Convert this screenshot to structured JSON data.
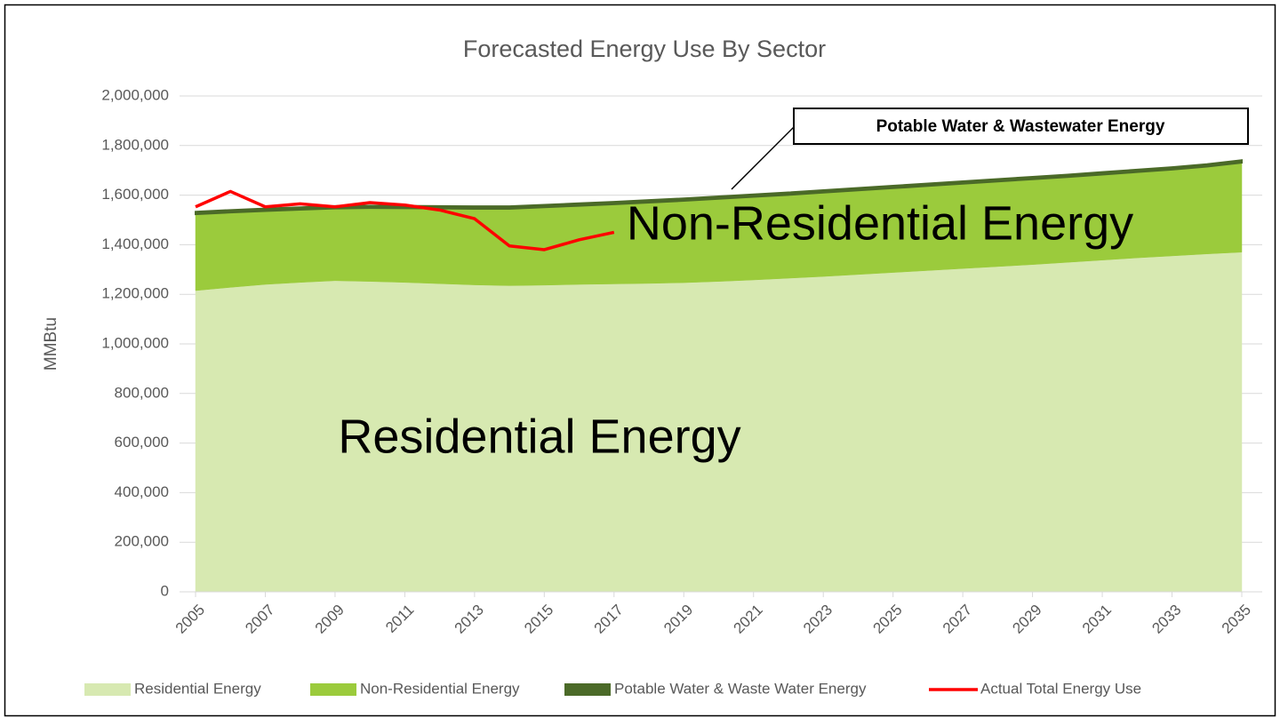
{
  "chart_data": {
    "type": "stacked-area",
    "title": "Forecasted Energy Use By Sector",
    "y_label": "MMBtu",
    "x": [
      2005,
      2006,
      2007,
      2008,
      2009,
      2010,
      2011,
      2012,
      2013,
      2014,
      2015,
      2016,
      2017,
      2018,
      2019,
      2020,
      2021,
      2022,
      2023,
      2024,
      2025,
      2026,
      2027,
      2028,
      2029,
      2030,
      2031,
      2032,
      2033,
      2034,
      2035
    ],
    "xlim": [
      2005,
      2035
    ],
    "xticks": [
      2005,
      2007,
      2009,
      2011,
      2013,
      2015,
      2017,
      2019,
      2021,
      2023,
      2025,
      2027,
      2029,
      2031,
      2033,
      2035
    ],
    "ylim": [
      0,
      2000000
    ],
    "yticks": [
      0,
      {
        "value": 200000,
        "label": "200,000"
      },
      {
        "value": 400000,
        "label": "400,000"
      },
      {
        "value": 600000,
        "label": "600,000"
      },
      {
        "value": 800000,
        "label": "800,000"
      },
      {
        "value": 1000000,
        "label": "1,000,000"
      },
      {
        "value": 1200000,
        "label": "1,200,000"
      },
      {
        "value": 1400000,
        "label": "1,400,000"
      },
      {
        "value": 1600000,
        "label": "1,600,000"
      },
      {
        "value": 1800000,
        "label": "1,800,000"
      },
      {
        "value": 2000000,
        "label": "2,000,000"
      }
    ],
    "grid": true,
    "series": [
      {
        "name": "Residential Energy",
        "color": "#d7e9b1",
        "stack": true,
        "values": [
          1215000,
          1228000,
          1240000,
          1248000,
          1255000,
          1252000,
          1248000,
          1243000,
          1238000,
          1235000,
          1237000,
          1240000,
          1242000,
          1244000,
          1247000,
          1252000,
          1258000,
          1265000,
          1272000,
          1280000,
          1288000,
          1296000,
          1304000,
          1312000,
          1320000,
          1329000,
          1338000,
          1347000,
          1355000,
          1363000,
          1370000
        ]
      },
      {
        "name": "Non-Residential Energy",
        "color": "#9bcb3c",
        "stack": true,
        "values": [
          308000,
          302000,
          296000,
          293000,
          291000,
          296000,
          299000,
          303000,
          307000,
          310000,
          314000,
          317000,
          321000,
          326000,
          330000,
          333000,
          335000,
          336000,
          338000,
          339000,
          340000,
          341000,
          342000,
          343000,
          344000,
          344000,
          345000,
          346000,
          348000,
          352000,
          361000
        ]
      },
      {
        "name": "Potable Water & Waste Water Energy",
        "color": "#4b6a28",
        "stack": true,
        "values": [
          10000,
          10000,
          10000,
          10000,
          10000,
          10000,
          10000,
          10000,
          10000,
          10000,
          10000,
          10000,
          10000,
          10000,
          10000,
          10000,
          10000,
          10000,
          10000,
          10000,
          10000,
          10000,
          10000,
          10000,
          10000,
          10000,
          10000,
          10000,
          10000,
          10000,
          10000
        ]
      },
      {
        "name": "Actual Total Energy Use",
        "color": "#ff0000",
        "stack": false,
        "values": [
          1553000,
          1615000,
          1553000,
          1565000,
          1553000,
          1570000,
          1560000,
          1540000,
          1505000,
          1395000,
          1380000,
          1420000,
          1450000,
          null,
          null,
          null,
          null,
          null,
          null,
          null,
          null,
          null,
          null,
          null,
          null,
          null,
          null,
          null,
          null,
          null,
          null
        ]
      }
    ],
    "annotations": [
      "Non-Residential Energy",
      "Residential Energy",
      "Potable Water & Wastewater Energy"
    ],
    "legend": "bottom"
  }
}
